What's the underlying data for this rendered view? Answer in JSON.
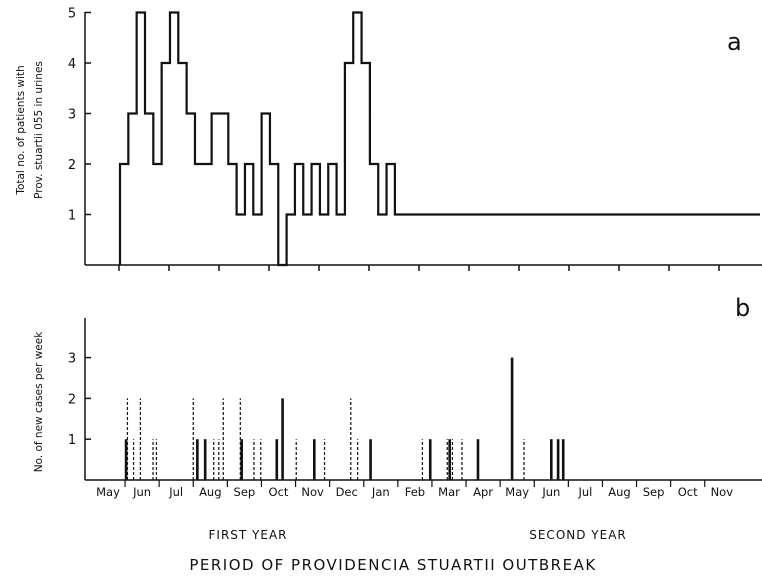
{
  "figure": {
    "title": "PERIOD OF PROVIDENCIA STUARTII OUTBREAK",
    "first_year_label": "FIRST YEAR",
    "second_year_label": "SECOND YEAR"
  },
  "chart_data": [
    {
      "type": "line",
      "panel": "a",
      "ylabel_line1": "Total no. of patients with",
      "ylabel_line2": "Prov. stuartii 055  in urines",
      "ylim": [
        0,
        5
      ],
      "yticks": [
        "1",
        "2",
        "3",
        "4",
        "5"
      ],
      "step": true,
      "x": [
        18,
        19,
        20,
        21,
        22,
        23,
        24,
        25,
        26,
        27,
        29,
        31,
        32,
        33,
        34,
        35,
        36,
        37,
        38,
        39,
        40,
        41,
        42,
        43,
        44,
        45,
        46,
        47,
        48,
        49,
        50,
        51,
        52,
        53,
        54,
        55,
        56,
        57,
        58,
        59,
        60,
        61,
        62,
        63,
        64,
        65,
        66,
        67,
        68,
        69,
        70,
        71,
        72,
        73,
        74,
        75,
        76,
        77,
        78,
        79
      ],
      "values": [
        2,
        3,
        5,
        3,
        2,
        4,
        5,
        4,
        3,
        2,
        3,
        2,
        1,
        2,
        1,
        3,
        2,
        0,
        1,
        2,
        1,
        2,
        1,
        2,
        1,
        4,
        5,
        4,
        2,
        1,
        2,
        1,
        1,
        1,
        1,
        1,
        1,
        1,
        1,
        1,
        1,
        1,
        1,
        1,
        1,
        1,
        1,
        1,
        1,
        1,
        1,
        1,
        1,
        1,
        1,
        1,
        1,
        1,
        1,
        1
      ]
    },
    {
      "type": "bar",
      "panel": "b",
      "ylabel": "No. of new cases per week",
      "ylim": [
        0,
        3
      ],
      "yticks": [
        "1",
        "2",
        "3"
      ],
      "xlabels": [
        "May",
        "Jun",
        "Jul",
        "Aug",
        "Sep",
        "Oct",
        "Nov",
        "Dec",
        "Jan",
        "Feb",
        "Mar",
        "Apr",
        "May",
        "Jun",
        "Jul",
        "Aug",
        "Sep",
        "Oct",
        "Nov"
      ],
      "bars": [
        {
          "month": 1.03,
          "value": 1,
          "style": "solid"
        },
        {
          "month": 1.07,
          "value": 2,
          "style": "dashed"
        },
        {
          "month": 1.25,
          "value": 1,
          "style": "dashed"
        },
        {
          "month": 1.45,
          "value": 2,
          "style": "dashed"
        },
        {
          "month": 1.82,
          "value": 1,
          "style": "dashed"
        },
        {
          "month": 1.92,
          "value": 1,
          "style": "dashed"
        },
        {
          "month": 3.0,
          "value": 2,
          "style": "dashed"
        },
        {
          "month": 3.12,
          "value": 1,
          "style": "solid"
        },
        {
          "month": 3.35,
          "value": 1,
          "style": "solid"
        },
        {
          "month": 3.6,
          "value": 1,
          "style": "dashed"
        },
        {
          "month": 3.75,
          "value": 1,
          "style": "dashed"
        },
        {
          "month": 3.88,
          "value": 2,
          "style": "dashed"
        },
        {
          "month": 4.38,
          "value": 2,
          "style": "dashed"
        },
        {
          "month": 4.42,
          "value": 1,
          "style": "solid"
        },
        {
          "month": 4.78,
          "value": 1,
          "style": "dashed"
        },
        {
          "month": 4.98,
          "value": 1,
          "style": "dashed"
        },
        {
          "month": 5.45,
          "value": 1,
          "style": "solid"
        },
        {
          "month": 5.62,
          "value": 2,
          "style": "solid"
        },
        {
          "month": 6.02,
          "value": 1,
          "style": "dashed"
        },
        {
          "month": 6.55,
          "value": 1,
          "style": "solid"
        },
        {
          "month": 6.85,
          "value": 1,
          "style": "dashed"
        },
        {
          "month": 7.62,
          "value": 2,
          "style": "dashed"
        },
        {
          "month": 7.82,
          "value": 1,
          "style": "dashed"
        },
        {
          "month": 8.2,
          "value": 1,
          "style": "solid"
        },
        {
          "month": 9.72,
          "value": 1,
          "style": "dashed"
        },
        {
          "month": 9.95,
          "value": 1,
          "style": "solid"
        },
        {
          "month": 10.45,
          "value": 1,
          "style": "dashed"
        },
        {
          "month": 10.52,
          "value": 1,
          "style": "solid"
        },
        {
          "month": 10.6,
          "value": 1,
          "style": "dashed"
        },
        {
          "month": 10.88,
          "value": 1,
          "style": "dashed"
        },
        {
          "month": 11.35,
          "value": 1,
          "style": "solid"
        },
        {
          "month": 12.35,
          "value": 3,
          "style": "solid"
        },
        {
          "month": 12.7,
          "value": 1,
          "style": "dashed"
        },
        {
          "month": 13.5,
          "value": 1,
          "style": "solid"
        },
        {
          "month": 13.7,
          "value": 1,
          "style": "solid"
        },
        {
          "month": 13.85,
          "value": 1,
          "style": "solid"
        }
      ]
    }
  ]
}
